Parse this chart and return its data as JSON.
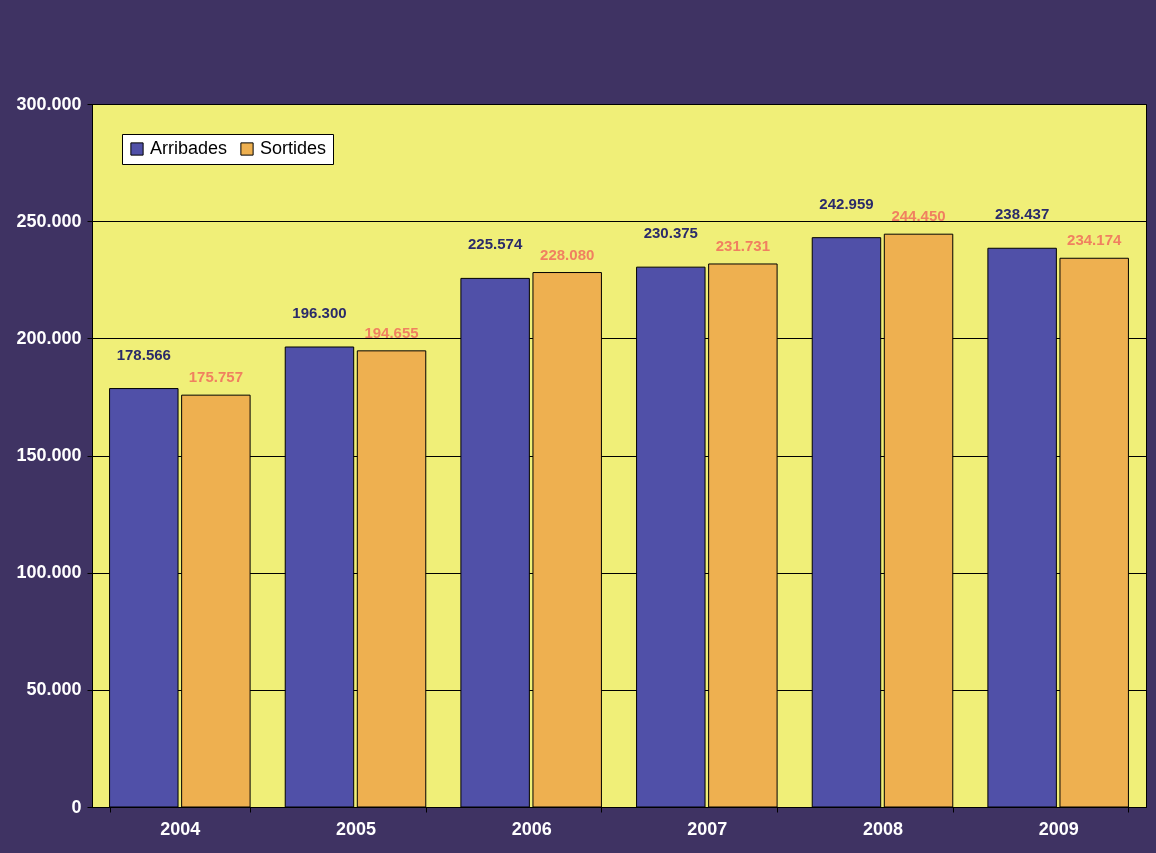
{
  "chart_data": {
    "type": "bar",
    "categories": [
      "2004",
      "2005",
      "2006",
      "2007",
      "2008",
      "2009"
    ],
    "series": [
      {
        "name": "Arribades",
        "color": "#5050a8",
        "values": [
          178566,
          196300,
          225574,
          230375,
          242959,
          238437
        ],
        "value_labels": [
          "178.566",
          "196.300",
          "225.574",
          "230.375",
          "242.959",
          "238.437"
        ]
      },
      {
        "name": "Sortides",
        "color": "#eeb050",
        "values": [
          175757,
          194655,
          228080,
          231731,
          244450,
          234174
        ],
        "value_labels": [
          "175.757",
          "194.655",
          "228.080",
          "231.731",
          "244.450",
          "234.174"
        ]
      }
    ],
    "ylim": [
      0,
      300000
    ],
    "yticks": [
      {
        "value": 0,
        "label": "0"
      },
      {
        "value": 50000,
        "label": "50.000"
      },
      {
        "value": 100000,
        "label": "100.000"
      },
      {
        "value": 150000,
        "label": "150.000"
      },
      {
        "value": 200000,
        "label": "200.000"
      },
      {
        "value": 250000,
        "label": "250.000"
      },
      {
        "value": 300000,
        "label": "300.000"
      }
    ],
    "grid": "y",
    "legend": "top left"
  }
}
